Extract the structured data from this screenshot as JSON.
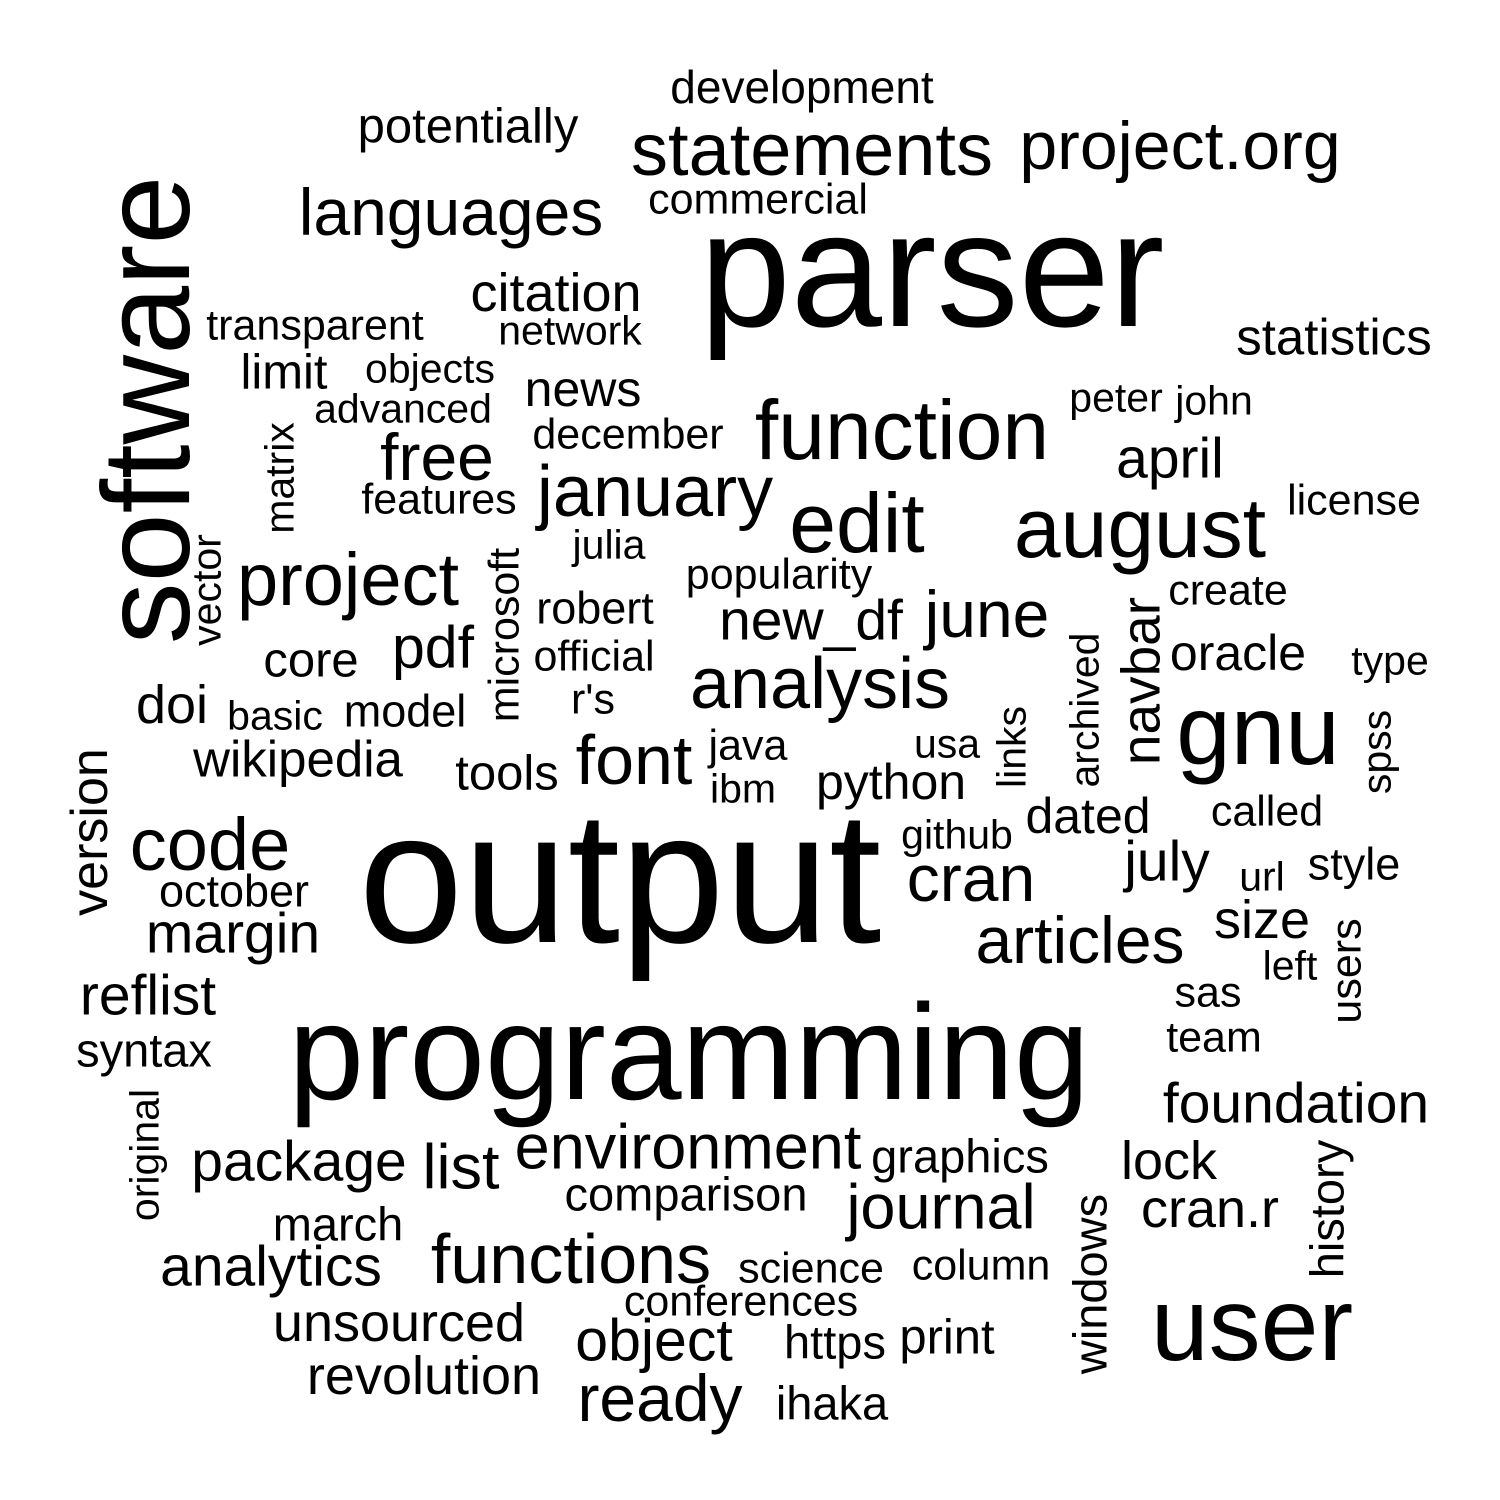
{
  "words": [
    "development",
    "potentially",
    "statements",
    "project.org",
    "commercial",
    "languages",
    "parser",
    "software",
    "citation",
    "transparent",
    "network",
    "statistics",
    "limit",
    "objects",
    "news",
    "advanced",
    "peter",
    "john",
    "december",
    "function",
    "free",
    "april",
    "matrix",
    "features",
    "january",
    "edit",
    "august",
    "license",
    "julia",
    "vector",
    "project",
    "microsoft",
    "popularity",
    "robert",
    "create",
    "new_df",
    "june",
    "core",
    "pdf",
    "official",
    "oracle",
    "type",
    "analysis",
    "archived",
    "navbar",
    "doi",
    "basic",
    "model",
    "r's",
    "gnu",
    "links",
    "version",
    "java",
    "usa",
    "font",
    "wikipedia",
    "tools",
    "ibm",
    "python",
    "spss",
    "called",
    "github",
    "dated",
    "code",
    "output",
    "cran",
    "july",
    "url",
    "style",
    "october",
    "margin",
    "articles",
    "size",
    "users",
    "left",
    "reflist",
    "sas",
    "programming",
    "team",
    "syntax",
    "foundation",
    "original",
    "environment",
    "graphics",
    "package",
    "list",
    "lock",
    "history",
    "comparison",
    "journal",
    "cran.r",
    "march",
    "windows",
    "analytics",
    "functions",
    "science",
    "column",
    "conferences",
    "unsourced",
    "user",
    "object",
    "https",
    "print",
    "revolution",
    "ready",
    "ihaka"
  ]
}
